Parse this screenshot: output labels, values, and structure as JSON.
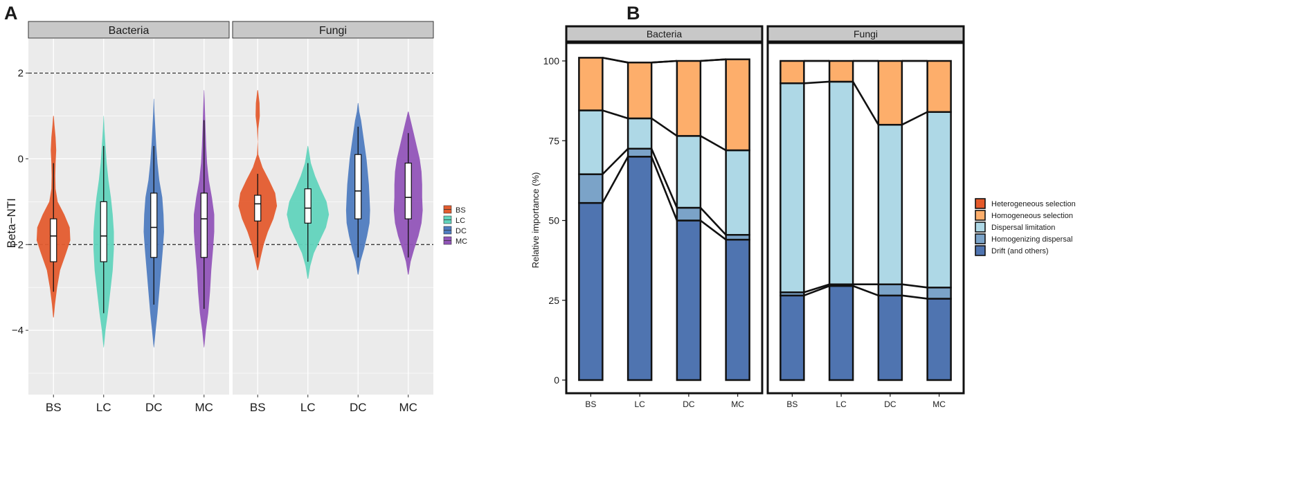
{
  "chart_data": [
    {
      "panel": "A",
      "type": "violin",
      "ylabel": "Beta−NTI",
      "ylim": [
        -5.5,
        2.8
      ],
      "yticks": [
        2,
        0,
        -2,
        -4
      ],
      "ytick_labels": [
        "2",
        "0",
        "−2",
        "−4"
      ],
      "reference_lines": [
        2,
        -2
      ],
      "categories": [
        "BS",
        "LC",
        "DC",
        "MC"
      ],
      "legend": [
        {
          "label": "BS",
          "color": "#e45c2f"
        },
        {
          "label": "LC",
          "color": "#62d4bd"
        },
        {
          "label": "DC",
          "color": "#4f7cc0"
        },
        {
          "label": "MC",
          "color": "#9255b9"
        }
      ],
      "facets": [
        {
          "title": "Bacteria",
          "groups": [
            {
              "name": "BS",
              "q1": -2.4,
              "median": -1.8,
              "q3": -1.4,
              "whisker_low": -3.1,
              "whisker_high": -0.1,
              "min": -3.7,
              "max": 1.0,
              "profile": [
                [
                  -3.7,
                  0.005
                ],
                [
                  -3.4,
                  0.025
                ],
                [
                  -3.0,
                  0.06
                ],
                [
                  -2.6,
                  0.11
                ],
                [
                  -2.2,
                  0.21
                ],
                [
                  -1.9,
                  0.28
                ],
                [
                  -1.6,
                  0.27
                ],
                [
                  -1.3,
                  0.18
                ],
                [
                  -1.0,
                  0.07
                ],
                [
                  -0.7,
                  0.035
                ],
                [
                  -0.4,
                  0.03
                ],
                [
                  -0.1,
                  0.035
                ],
                [
                  0.2,
                  0.045
                ],
                [
                  0.5,
                  0.035
                ],
                [
                  0.8,
                  0.015
                ],
                [
                  1.0,
                  0.005
                ]
              ]
            },
            {
              "name": "LC",
              "q1": -2.4,
              "median": -1.8,
              "q3": -1.0,
              "whisker_low": -3.6,
              "whisker_high": 0.3,
              "min": -4.4,
              "max": 1.0,
              "profile": [
                [
                  -4.4,
                  0.003
                ],
                [
                  -4.0,
                  0.03
                ],
                [
                  -3.6,
                  0.07
                ],
                [
                  -3.1,
                  0.11
                ],
                [
                  -2.6,
                  0.15
                ],
                [
                  -2.1,
                  0.17
                ],
                [
                  -1.7,
                  0.17
                ],
                [
                  -1.3,
                  0.15
                ],
                [
                  -0.9,
                  0.12
                ],
                [
                  -0.5,
                  0.08
                ],
                [
                  -0.1,
                  0.05
                ],
                [
                  0.3,
                  0.03
                ],
                [
                  0.7,
                  0.012
                ],
                [
                  1.0,
                  0.003
                ]
              ]
            },
            {
              "name": "DC",
              "q1": -2.3,
              "median": -1.6,
              "q3": -0.8,
              "whisker_low": -3.4,
              "whisker_high": 0.3,
              "min": -4.4,
              "max": 1.4,
              "profile": [
                [
                  -4.4,
                  0.003
                ],
                [
                  -4.0,
                  0.03
                ],
                [
                  -3.6,
                  0.06
                ],
                [
                  -3.1,
                  0.09
                ],
                [
                  -2.6,
                  0.12
                ],
                [
                  -2.1,
                  0.15
                ],
                [
                  -1.7,
                  0.17
                ],
                [
                  -1.3,
                  0.16
                ],
                [
                  -0.9,
                  0.14
                ],
                [
                  -0.5,
                  0.09
                ],
                [
                  -0.1,
                  0.06
                ],
                [
                  0.3,
                  0.04
                ],
                [
                  0.7,
                  0.025
                ],
                [
                  1.1,
                  0.01
                ],
                [
                  1.4,
                  0.003
                ]
              ]
            },
            {
              "name": "MC",
              "q1": -2.3,
              "median": -1.4,
              "q3": -0.8,
              "whisker_low": -3.5,
              "whisker_high": 0.9,
              "min": -4.4,
              "max": 1.6,
              "profile": [
                [
                  -4.4,
                  0.003
                ],
                [
                  -4.0,
                  0.03
                ],
                [
                  -3.6,
                  0.07
                ],
                [
                  -3.1,
                  0.1
                ],
                [
                  -2.6,
                  0.12
                ],
                [
                  -2.1,
                  0.15
                ],
                [
                  -1.7,
                  0.17
                ],
                [
                  -1.3,
                  0.17
                ],
                [
                  -0.9,
                  0.13
                ],
                [
                  -0.5,
                  0.08
                ],
                [
                  -0.1,
                  0.05
                ],
                [
                  0.3,
                  0.035
                ],
                [
                  0.7,
                  0.025
                ],
                [
                  1.1,
                  0.015
                ],
                [
                  1.6,
                  0.003
                ]
              ]
            }
          ]
        },
        {
          "title": "Fungi",
          "groups": [
            {
              "name": "BS",
              "q1": -1.45,
              "median": -1.05,
              "q3": -0.85,
              "whisker_low": -2.3,
              "whisker_high": -0.35,
              "min": -2.6,
              "max": 1.6,
              "profile": [
                [
                  -2.6,
                  0.005
                ],
                [
                  -2.3,
                  0.05
                ],
                [
                  -2.0,
                  0.1
                ],
                [
                  -1.7,
                  0.17
                ],
                [
                  -1.4,
                  0.26
                ],
                [
                  -1.1,
                  0.32
                ],
                [
                  -0.8,
                  0.29
                ],
                [
                  -0.5,
                  0.19
                ],
                [
                  -0.2,
                  0.08
                ],
                [
                  0.1,
                  0.01
                ],
                [
                  0.4,
                  0.002
                ],
                [
                  0.7,
                  0.01
                ],
                [
                  1.0,
                  0.035
                ],
                [
                  1.3,
                  0.03
                ],
                [
                  1.6,
                  0.005
                ]
              ]
            },
            {
              "name": "LC",
              "q1": -1.5,
              "median": -1.15,
              "q3": -0.7,
              "whisker_low": -2.4,
              "whisker_high": -0.1,
              "min": -2.8,
              "max": 0.3,
              "profile": [
                [
                  -2.8,
                  0.005
                ],
                [
                  -2.5,
                  0.04
                ],
                [
                  -2.2,
                  0.1
                ],
                [
                  -1.9,
                  0.2
                ],
                [
                  -1.6,
                  0.3
                ],
                [
                  -1.3,
                  0.35
                ],
                [
                  -1.0,
                  0.31
                ],
                [
                  -0.7,
                  0.21
                ],
                [
                  -0.4,
                  0.12
                ],
                [
                  -0.1,
                  0.05
                ],
                [
                  0.3,
                  0.004
                ]
              ]
            },
            {
              "name": "DC",
              "q1": -1.4,
              "median": -0.75,
              "q3": 0.1,
              "whisker_low": -2.3,
              "whisker_high": 0.75,
              "min": -2.7,
              "max": 1.3,
              "profile": [
                [
                  -2.7,
                  0.005
                ],
                [
                  -2.4,
                  0.04
                ],
                [
                  -2.1,
                  0.1
                ],
                [
                  -1.8,
                  0.15
                ],
                [
                  -1.5,
                  0.19
                ],
                [
                  -1.2,
                  0.2
                ],
                [
                  -0.9,
                  0.19
                ],
                [
                  -0.6,
                  0.18
                ],
                [
                  -0.3,
                  0.16
                ],
                [
                  0.0,
                  0.14
                ],
                [
                  0.3,
                  0.11
                ],
                [
                  0.6,
                  0.08
                ],
                [
                  0.9,
                  0.05
                ],
                [
                  1.1,
                  0.02
                ],
                [
                  1.3,
                  0.004
                ]
              ]
            },
            {
              "name": "MC",
              "q1": -1.4,
              "median": -0.9,
              "q3": -0.1,
              "whisker_low": -2.3,
              "whisker_high": 0.6,
              "min": -2.7,
              "max": 1.1,
              "profile": [
                [
                  -2.7,
                  0.005
                ],
                [
                  -2.4,
                  0.04
                ],
                [
                  -2.1,
                  0.1
                ],
                [
                  -1.8,
                  0.17
                ],
                [
                  -1.5,
                  0.22
                ],
                [
                  -1.2,
                  0.24
                ],
                [
                  -0.9,
                  0.23
                ],
                [
                  -0.6,
                  0.23
                ],
                [
                  -0.3,
                  0.22
                ],
                [
                  0.0,
                  0.19
                ],
                [
                  0.3,
                  0.14
                ],
                [
                  0.6,
                  0.09
                ],
                [
                  0.9,
                  0.04
                ],
                [
                  1.1,
                  0.005
                ]
              ]
            }
          ]
        }
      ]
    },
    {
      "panel": "B",
      "type": "stacked-bar",
      "ylabel": "Relative importance (%)",
      "ylim": [
        0,
        105
      ],
      "yticks": [
        0,
        25,
        50,
        75,
        100
      ],
      "categories": [
        "BS",
        "LC",
        "DC",
        "MC"
      ],
      "stack_order": [
        "Drift (and others)",
        "Homogenizing dispersal",
        "Dispersal limitation",
        "Homogeneous selection",
        "Heterogeneous selection"
      ],
      "legend": [
        {
          "label": "Heterogeneous selection",
          "color": "#e4592a"
        },
        {
          "label": "Homogeneous selection",
          "color": "#fdae6b"
        },
        {
          "label": "Dispersal limitation",
          "color": "#aed8e6"
        },
        {
          "label": "Homogenizing dispersal",
          "color": "#7ba3c8"
        },
        {
          "label": "Drift (and others)",
          "color": "#4f74b0"
        }
      ],
      "facets": [
        {
          "title": "Bacteria",
          "series": [
            {
              "name": "Drift (and others)",
              "values": [
                55.5,
                70.0,
                50.0,
                44.0
              ]
            },
            {
              "name": "Homogenizing dispersal",
              "values": [
                9.0,
                2.5,
                4.0,
                1.5
              ]
            },
            {
              "name": "Dispersal limitation",
              "values": [
                20.0,
                9.5,
                22.5,
                26.5
              ]
            },
            {
              "name": "Homogeneous selection",
              "values": [
                16.5,
                17.5,
                23.5,
                28.5
              ]
            },
            {
              "name": "Heterogeneous selection",
              "values": [
                0.0,
                0.0,
                0.0,
                0.0
              ]
            }
          ]
        },
        {
          "title": "Fungi",
          "series": [
            {
              "name": "Drift (and others)",
              "values": [
                26.5,
                29.5,
                26.5,
                25.5
              ]
            },
            {
              "name": "Homogenizing dispersal",
              "values": [
                1.0,
                0.5,
                3.5,
                3.5
              ]
            },
            {
              "name": "Dispersal limitation",
              "values": [
                65.5,
                63.5,
                50.0,
                55.0
              ]
            },
            {
              "name": "Homogeneous selection",
              "values": [
                7.0,
                6.5,
                20.0,
                16.0
              ]
            },
            {
              "name": "Heterogeneous selection",
              "values": [
                0.0,
                0.0,
                0.0,
                0.0
              ]
            }
          ]
        }
      ]
    }
  ]
}
